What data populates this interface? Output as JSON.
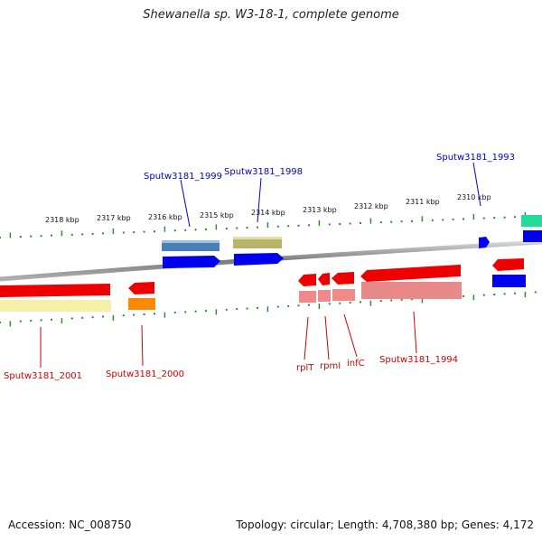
{
  "title": "Shewanella sp. W3-18-1, complete genome",
  "accession_text": "Accession: NC_008750",
  "topology_text": "Topology: circular; Length: 4,708,380 bp; Genes: 4,172",
  "colors": {
    "tick": "#2e8b2e",
    "backbone": "#8c8c8c",
    "label_blue": "#0000cc",
    "label_red": "#cc0000"
  },
  "kbp_labels": [
    "2318 kbp",
    "2317 kbp",
    "2316 kbp",
    "2315 kbp",
    "2314 kbp",
    "2313 kbp",
    "2312 kbp",
    "2311 kbp",
    "2310 kbp"
  ],
  "gene_labels_top": [
    "Sputw3181_1999",
    "Sputw3181_1998",
    "Sputw3181_1993"
  ],
  "gene_labels_bottom": [
    "Sputw3181_2001",
    "Sputw3181_2000",
    "rplT",
    "rpmI",
    "infC",
    "Sputw3181_1994"
  ]
}
